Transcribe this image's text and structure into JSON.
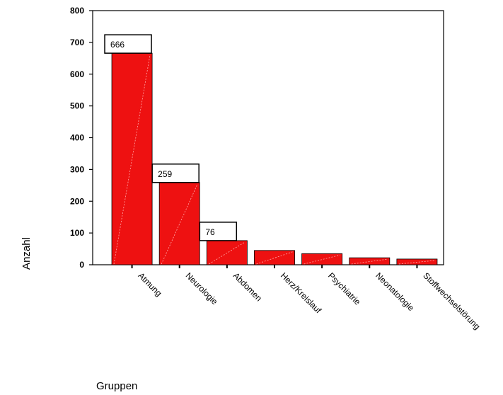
{
  "chart_data": {
    "type": "bar",
    "xlabel": "Gruppen",
    "ylabel": "Anzahl",
    "ylim": [
      0,
      800
    ],
    "yticks": [
      0,
      100,
      200,
      300,
      400,
      500,
      600,
      700,
      800
    ],
    "categories": [
      "Atmung",
      "Neurologie",
      "Abdomen",
      "Herz/Kreislauf",
      "Psychiatrie",
      "Neonatologie",
      "Stoffwechselstörung"
    ],
    "values": [
      666,
      259,
      76,
      45,
      35,
      22,
      18
    ],
    "data_labels": [
      "666",
      "259",
      "76",
      null,
      null,
      null,
      null
    ],
    "bar_color": "#ee1111",
    "grid": false,
    "legend": "none"
  }
}
